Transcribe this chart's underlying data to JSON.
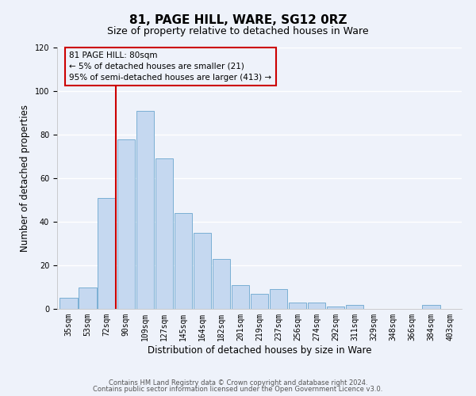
{
  "title": "81, PAGE HILL, WARE, SG12 0RZ",
  "subtitle": "Size of property relative to detached houses in Ware",
  "xlabel": "Distribution of detached houses by size in Ware",
  "ylabel": "Number of detached properties",
  "bar_labels": [
    "35sqm",
    "53sqm",
    "72sqm",
    "90sqm",
    "109sqm",
    "127sqm",
    "145sqm",
    "164sqm",
    "182sqm",
    "201sqm",
    "219sqm",
    "237sqm",
    "256sqm",
    "274sqm",
    "292sqm",
    "311sqm",
    "329sqm",
    "348sqm",
    "366sqm",
    "384sqm",
    "403sqm"
  ],
  "bar_values": [
    5,
    10,
    51,
    78,
    91,
    69,
    44,
    35,
    23,
    11,
    7,
    9,
    3,
    3,
    1,
    2,
    0,
    0,
    0,
    2,
    0
  ],
  "bar_color": "#c5d8f0",
  "bar_edge_color": "#7aafd4",
  "ylim": [
    0,
    120
  ],
  "yticks": [
    0,
    20,
    40,
    60,
    80,
    100,
    120
  ],
  "vline_x_index": 2,
  "vline_color": "#cc0000",
  "annotation_title": "81 PAGE HILL: 80sqm",
  "annotation_line1": "← 5% of detached houses are smaller (21)",
  "annotation_line2": "95% of semi-detached houses are larger (413) →",
  "annotation_box_color": "#cc0000",
  "footer_line1": "Contains HM Land Registry data © Crown copyright and database right 2024.",
  "footer_line2": "Contains public sector information licensed under the Open Government Licence v3.0.",
  "bg_color": "#eef2fa",
  "grid_color": "#ffffff",
  "title_fontsize": 11,
  "subtitle_fontsize": 9,
  "ylabel_fontsize": 8.5,
  "xlabel_fontsize": 8.5,
  "tick_fontsize": 7,
  "footer_fontsize": 6,
  "annot_fontsize": 7.5
}
